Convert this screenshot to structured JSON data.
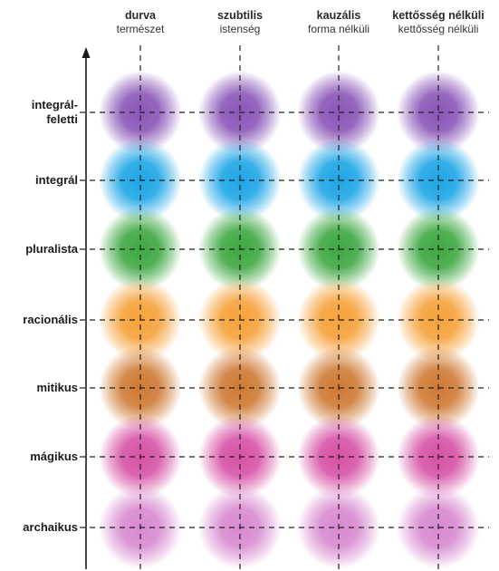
{
  "columns": [
    {
      "title": "durva",
      "subtitle": "természet"
    },
    {
      "title": "szubtilis",
      "subtitle": "istenség"
    },
    {
      "title": "kauzális",
      "subtitle": "forma nélküli"
    },
    {
      "title": "kettősség nélküli",
      "subtitle": "kettősség nélküli"
    }
  ],
  "rows": [
    {
      "label_lines": [
        "integrál-",
        "feletti"
      ],
      "color": "#8a56b8"
    },
    {
      "label_lines": [
        "integrál"
      ],
      "color": "#1ea6e6"
    },
    {
      "label_lines": [
        "pluralista"
      ],
      "color": "#3ea842"
    },
    {
      "label_lines": [
        "racionális"
      ],
      "color": "#f6a23a"
    },
    {
      "label_lines": [
        "mitikus"
      ],
      "color": "#cf7a34"
    },
    {
      "label_lines": [
        "mágikus"
      ],
      "color": "#d752a6"
    },
    {
      "label_lines": [
        "archaikus"
      ],
      "color": "#d88ad0"
    }
  ]
}
